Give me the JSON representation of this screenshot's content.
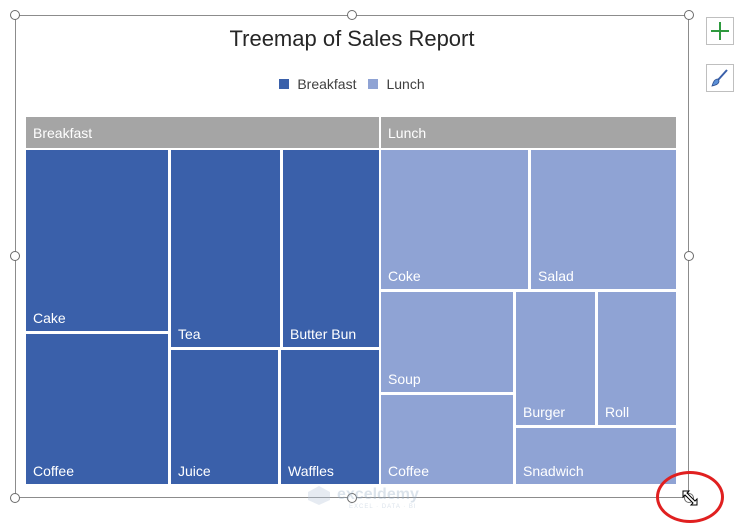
{
  "chart_data": {
    "type": "treemap",
    "title": "Treemap of Sales Report",
    "legend": [
      "Breakfast",
      "Lunch"
    ],
    "legend_position": "top",
    "groups": [
      {
        "name": "Breakfast",
        "color": "#3a60aa",
        "items": [
          {
            "label": "Cake"
          },
          {
            "label": "Coffee"
          },
          {
            "label": "Tea"
          },
          {
            "label": "Juice"
          },
          {
            "label": "Butter Bun"
          },
          {
            "label": "Waffles"
          }
        ]
      },
      {
        "name": "Lunch",
        "color": "#8fa3d4",
        "items": [
          {
            "label": "Coke"
          },
          {
            "label": "Salad"
          },
          {
            "label": "Soup"
          },
          {
            "label": "Coffee"
          },
          {
            "label": "Burger"
          },
          {
            "label": "Roll"
          },
          {
            "label": "Snadwich"
          }
        ]
      }
    ]
  },
  "icons": {
    "add_elements": "plus-icon",
    "chart_styles": "brush-icon"
  },
  "watermark": {
    "name": "exceldemy",
    "tagline": "EXCEL · DATA · BI"
  },
  "colors": {
    "header": "#a5a5a5",
    "highlight_circle": "#e02020"
  }
}
